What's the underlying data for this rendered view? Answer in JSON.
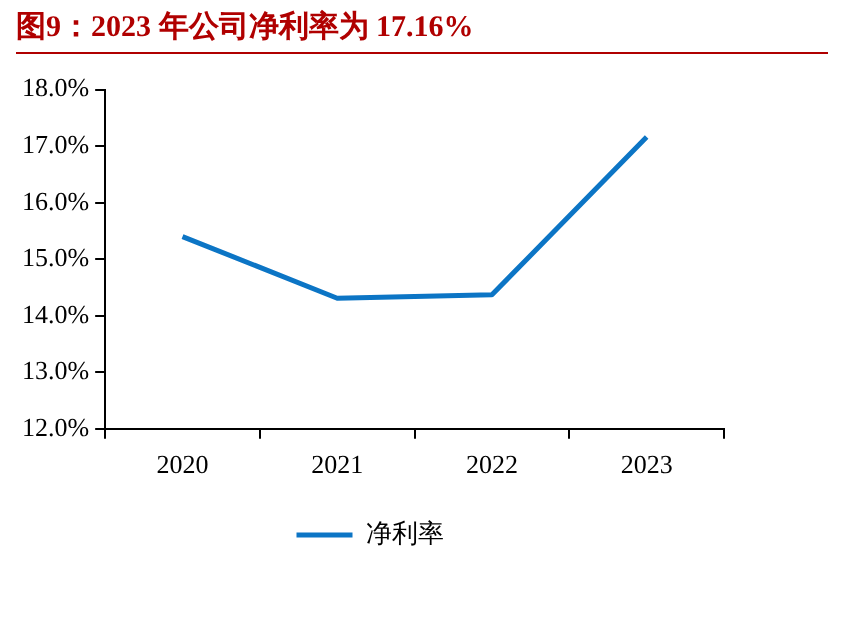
{
  "chart_data": {
    "type": "line",
    "title": "图9：2023 年公司净利率为 17.16%",
    "categories": [
      "2020",
      "2021",
      "2022",
      "2023"
    ],
    "series": [
      {
        "name": "净利率",
        "color": "#0c75c5",
        "values": [
          15.4,
          14.31,
          14.37,
          17.16
        ]
      }
    ],
    "ylim": [
      12,
      18
    ],
    "yticks": [
      {
        "value": 12,
        "label": "12.0%"
      },
      {
        "value": 13,
        "label": "13.0%"
      },
      {
        "value": 14,
        "label": "14.0%"
      },
      {
        "value": 15,
        "label": "15.0%"
      },
      {
        "value": 16,
        "label": "16.0%"
      },
      {
        "value": 17,
        "label": "17.0%"
      },
      {
        "value": 18,
        "label": "18.0%"
      }
    ],
    "grid": false,
    "legend": "bottom",
    "marker": "none",
    "line_style": "solid"
  }
}
